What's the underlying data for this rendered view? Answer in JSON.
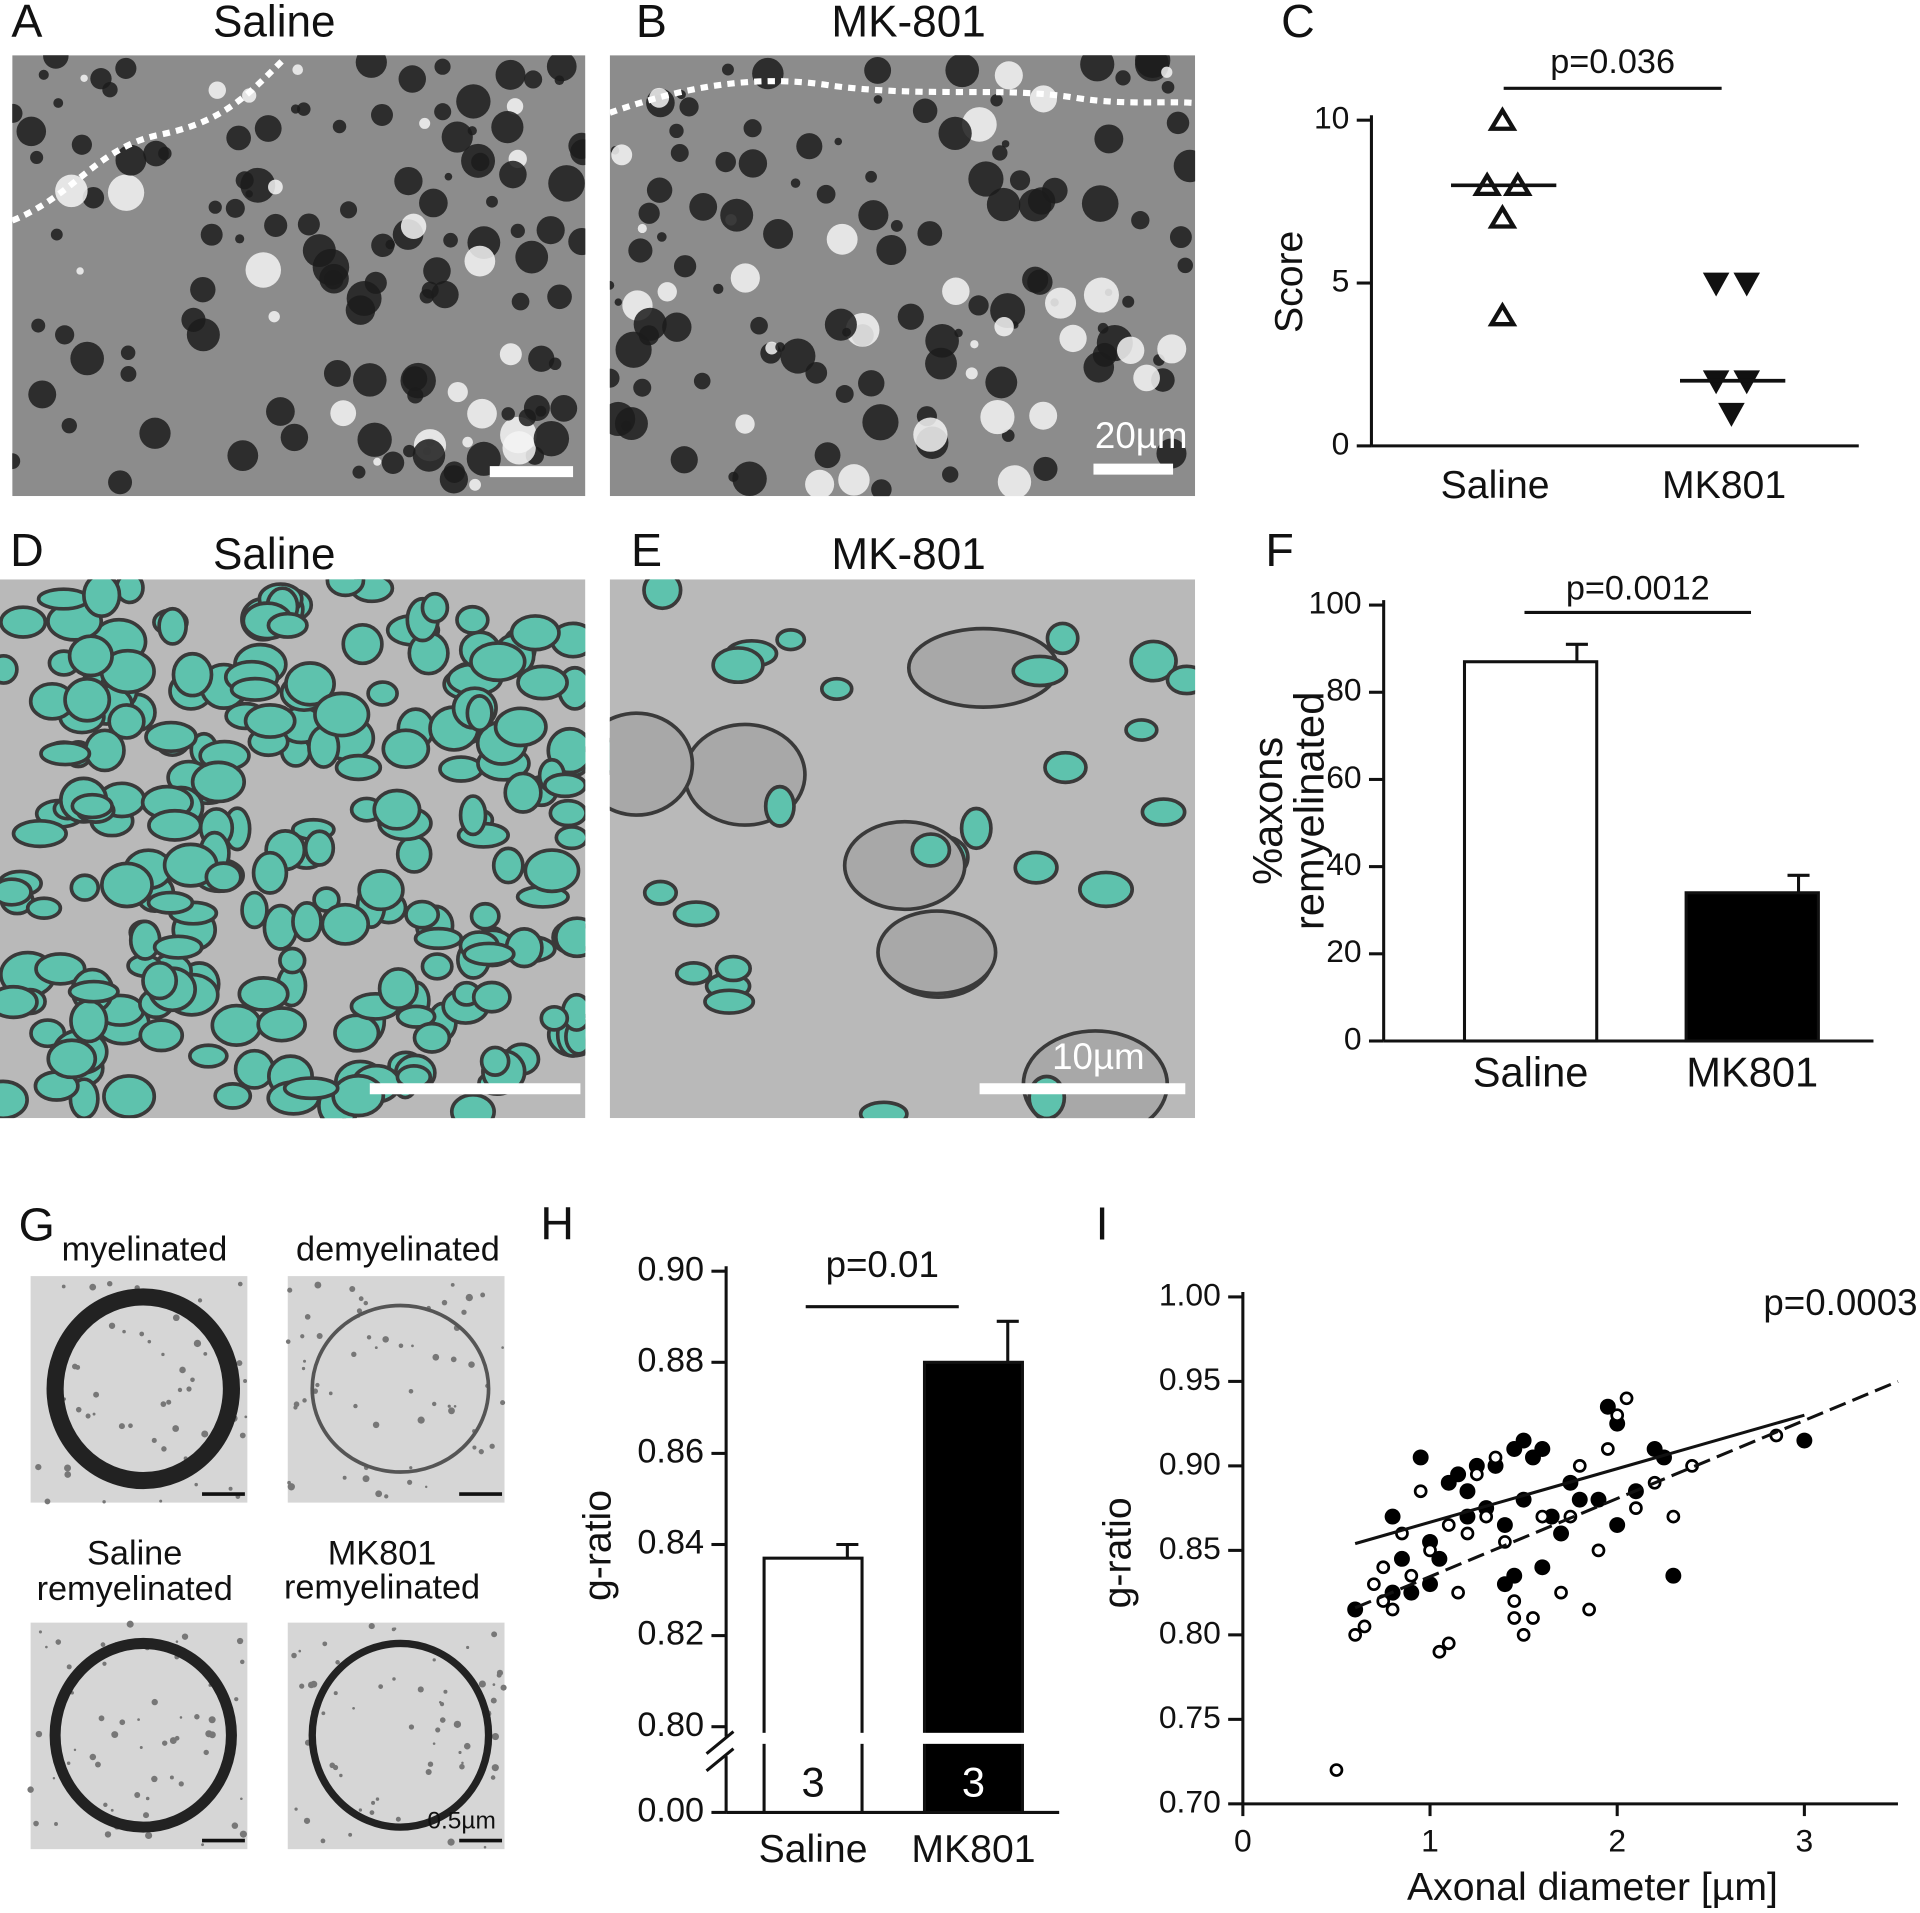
{
  "images": [
    {
      "letter": "A",
      "title": "Saline"
    },
    {
      "letter": "B",
      "title": "MK-801",
      "scale_bar": "20µm"
    },
    {
      "letter": "D",
      "title": "Saline"
    },
    {
      "letter": "E",
      "title": "MK-801",
      "scale_bar": "10µm"
    }
  ],
  "panel_g": {
    "letter": "G",
    "labels": [
      [
        "myelinated"
      ],
      [
        "demyelinated"
      ],
      [
        "Saline",
        "remyelinated"
      ],
      [
        "MK801",
        "remyelinated"
      ]
    ],
    "scale_bar": "0.5µm"
  },
  "chart_data": [
    {
      "letter": "C",
      "type": "dot",
      "ylabel": "Score",
      "categories": [
        "Saline",
        "MK801"
      ],
      "points": [
        [
          10,
          8,
          8,
          7,
          4
        ],
        [
          5,
          5,
          2,
          2,
          1
        ]
      ],
      "medians": [
        8,
        2
      ],
      "markers": [
        "triangle-open",
        "triangle-down-filled"
      ],
      "ylim": [
        0,
        10
      ],
      "yticks": [
        0,
        5,
        10
      ],
      "annotation": "p=0.036"
    },
    {
      "letter": "F",
      "type": "bar",
      "ylabel": [
        "%axons",
        "remyelinated"
      ],
      "categories": [
        "Saline",
        "MK801"
      ],
      "values": [
        87,
        34
      ],
      "errors": [
        4,
        4
      ],
      "colors": [
        "#ffffff",
        "#000000"
      ],
      "ylim": [
        0,
        100
      ],
      "yticks": [
        0,
        20,
        40,
        60,
        80,
        100
      ],
      "annotation": "p=0.0012"
    },
    {
      "letter": "H",
      "type": "bar",
      "ylabel": "g-ratio",
      "categories": [
        "Saline",
        "MK801"
      ],
      "values": [
        0.837,
        0.88
      ],
      "errors": [
        0.003,
        0.009
      ],
      "colors": [
        "#ffffff",
        "#000000"
      ],
      "n": [
        3,
        3
      ],
      "ylim": [
        0.8,
        0.9
      ],
      "yticks": [
        {
          "value": 0,
          "label": "0.00"
        },
        {
          "value": 0.8,
          "label": "0.80"
        },
        0.82,
        0.84,
        0.86,
        0.88,
        {
          "value": 0.9,
          "label": "0.90"
        }
      ],
      "axis_break": true,
      "annotation": "p=0.01"
    },
    {
      "letter": "I",
      "type": "scatter",
      "xlabel": "Axonal diameter [µm]",
      "ylabel": "g-ratio",
      "series": [
        {
          "marker": "filled",
          "color": "#000000",
          "x": [
            0.6,
            0.8,
            0.8,
            0.85,
            0.95,
            1.0,
            1.0,
            1.05,
            1.1,
            1.15,
            1.2,
            1.25,
            1.3,
            1.35,
            1.4,
            1.45,
            1.5,
            1.5,
            1.55,
            1.6,
            1.65,
            1.7,
            1.75,
            1.8,
            1.9,
            1.95,
            2.0,
            2.0,
            2.1,
            2.2,
            2.25,
            2.3,
            3.0,
            1.4,
            1.45,
            1.2,
            0.9,
            1.6
          ],
          "y": [
            0.815,
            0.87,
            0.825,
            0.845,
            0.905,
            0.855,
            0.83,
            0.845,
            0.89,
            0.895,
            0.87,
            0.9,
            0.875,
            0.9,
            0.865,
            0.91,
            0.915,
            0.88,
            0.905,
            0.91,
            0.87,
            0.86,
            0.89,
            0.88,
            0.88,
            0.935,
            0.865,
            0.925,
            0.885,
            0.91,
            0.905,
            0.835,
            0.915,
            0.83,
            0.835,
            0.885,
            0.825,
            0.84
          ]
        },
        {
          "marker": "open",
          "color": "#000000",
          "x": [
            0.5,
            0.6,
            0.65,
            0.7,
            0.75,
            0.75,
            0.8,
            0.85,
            0.9,
            1.0,
            1.05,
            1.1,
            1.15,
            1.2,
            1.25,
            1.3,
            1.35,
            1.4,
            1.45,
            1.45,
            1.5,
            1.55,
            1.6,
            1.7,
            1.75,
            1.8,
            1.85,
            1.9,
            1.95,
            2.0,
            2.05,
            2.1,
            2.2,
            2.3,
            2.4,
            2.85,
            0.95,
            1.1
          ],
          "y": [
            0.72,
            0.8,
            0.805,
            0.83,
            0.82,
            0.84,
            0.815,
            0.86,
            0.835,
            0.85,
            0.79,
            0.795,
            0.825,
            0.86,
            0.895,
            0.87,
            0.905,
            0.855,
            0.82,
            0.81,
            0.8,
            0.81,
            0.87,
            0.825,
            0.87,
            0.9,
            0.815,
            0.85,
            0.91,
            0.93,
            0.94,
            0.875,
            0.89,
            0.87,
            0.9,
            0.918,
            0.885,
            0.865
          ]
        }
      ],
      "fits": [
        {
          "style": "solid",
          "x": [
            0.6,
            3
          ],
          "y": [
            0.854,
            0.93
          ]
        },
        {
          "style": "dashed",
          "x": [
            0.6,
            3.5
          ],
          "y": [
            0.816,
            0.95
          ]
        }
      ],
      "xlim": [
        0,
        3.5
      ],
      "ylim": [
        0.7,
        1.0
      ],
      "xticks": [
        0,
        1,
        2,
        3
      ],
      "yticks": [
        {
          "value": 0.7,
          "label": "0.70"
        },
        0.75,
        {
          "value": 0.8,
          "label": "0.80"
        },
        0.85,
        {
          "value": 0.9,
          "label": "0.90"
        },
        0.95,
        {
          "value": 1,
          "label": "1.00"
        }
      ],
      "annotation": "p=0.0003"
    }
  ]
}
